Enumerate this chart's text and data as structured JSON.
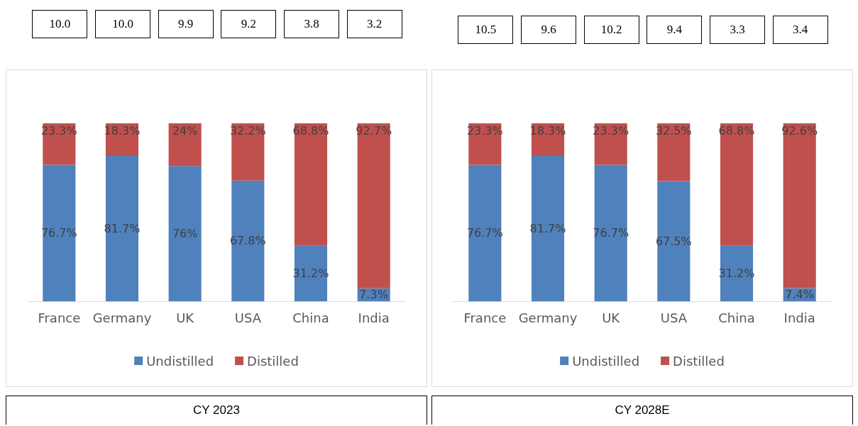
{
  "chart_data": [
    {
      "type": "bar",
      "stacked": true,
      "title": "CY 2023",
      "categories": [
        "France",
        "Germany",
        "UK",
        "USA",
        "China",
        "India"
      ],
      "legend": "bottom",
      "annotations": [
        "10.0",
        "10.0",
        "9.9",
        "9.2",
        "3.8",
        "3.2"
      ],
      "series": [
        {
          "name": "Undistilled",
          "color": "#4f81bd",
          "values": [
            76.7,
            81.7,
            76,
            67.8,
            31.2,
            7.3
          ],
          "value_labels": [
            "76.7%",
            "81.7%",
            "76%",
            "67.8%",
            "31.2%",
            "7.3%"
          ]
        },
        {
          "name": "Distilled",
          "color": "#c0504d",
          "values": [
            23.3,
            18.3,
            24,
            32.2,
            68.8,
            92.7
          ],
          "value_labels": [
            "23.3%",
            "18.3%",
            "24%",
            "32.2%",
            "68.8%",
            "92.7%"
          ]
        }
      ]
    },
    {
      "type": "bar",
      "stacked": true,
      "title": "CY 2028E",
      "categories": [
        "France",
        "Germany",
        "UK",
        "USA",
        "China",
        "India"
      ],
      "legend": "bottom",
      "annotations": [
        "10.5",
        "9.6",
        "10.2",
        "9.4",
        "3.3",
        "3.4"
      ],
      "series": [
        {
          "name": "Undistilled",
          "color": "#4f81bd",
          "values": [
            76.7,
            81.7,
            76.7,
            67.5,
            31.2,
            7.4
          ],
          "value_labels": [
            "76.7%",
            "81.7%",
            "76.7%",
            "67.5%",
            "31.2%",
            "7.4%"
          ]
        },
        {
          "name": "Distilled",
          "color": "#c0504d",
          "values": [
            23.3,
            18.3,
            23.3,
            32.5,
            68.8,
            92.6
          ],
          "value_labels": [
            "23.3%",
            "18.3%",
            "23.3%",
            "32.5%",
            "68.8%",
            "92.6%"
          ]
        }
      ]
    }
  ]
}
